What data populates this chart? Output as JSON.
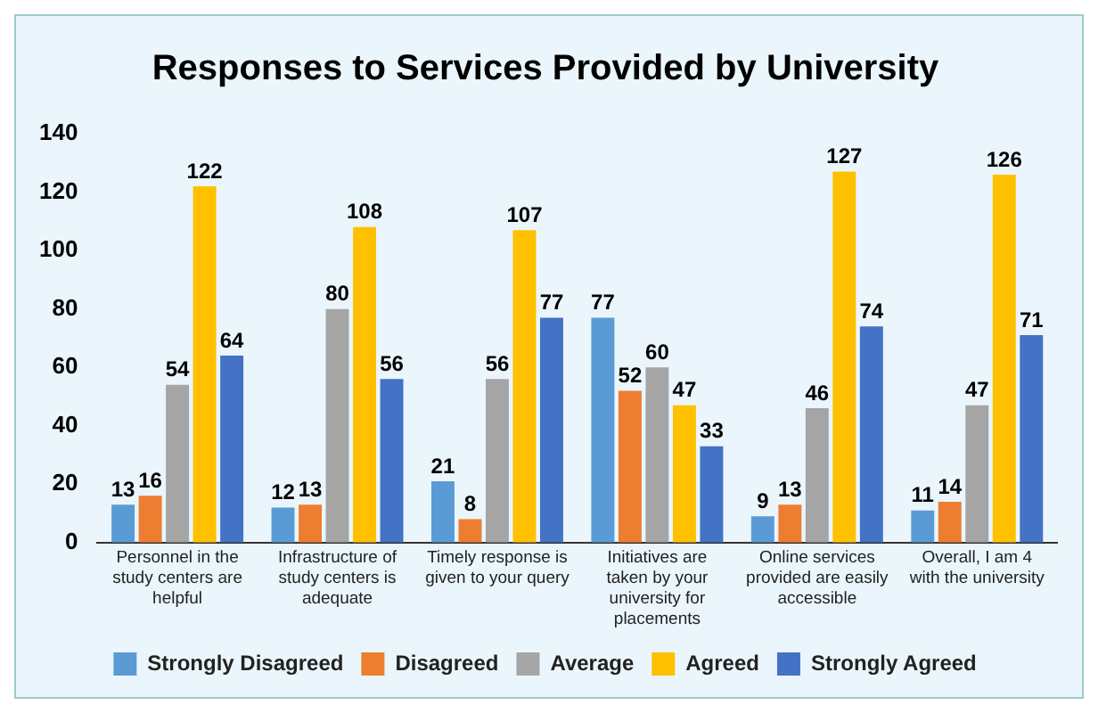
{
  "chart_data": {
    "type": "bar",
    "title": "Responses to Services Provided by University",
    "categories": [
      "Personnel in the study centers are helpful",
      "Infrastructure of study centers is adequate",
      "Timely response is given to your query",
      "Initiatives are taken by your university for placements",
      "Online services provided are easily accessible",
      "Overall, I am 4 with the university"
    ],
    "series": [
      {
        "name": "Strongly Disagreed",
        "color": "#5b9bd5",
        "values": [
          13,
          12,
          21,
          77,
          9,
          11
        ]
      },
      {
        "name": "Disagreed",
        "color": "#ed7d31",
        "values": [
          16,
          13,
          8,
          52,
          13,
          14
        ]
      },
      {
        "name": "Average",
        "color": "#a5a5a5",
        "values": [
          54,
          80,
          56,
          60,
          46,
          47
        ]
      },
      {
        "name": "Agreed",
        "color": "#ffc000",
        "values": [
          122,
          108,
          107,
          47,
          127,
          126
        ]
      },
      {
        "name": "Strongly Agreed",
        "color": "#4472c4",
        "values": [
          64,
          56,
          77,
          33,
          74,
          71
        ]
      }
    ],
    "ylim": [
      0,
      140
    ],
    "yticks": [
      0,
      20,
      40,
      60,
      80,
      100,
      120,
      140
    ],
    "grid": false,
    "legend": "bottom",
    "data_labels": true
  }
}
